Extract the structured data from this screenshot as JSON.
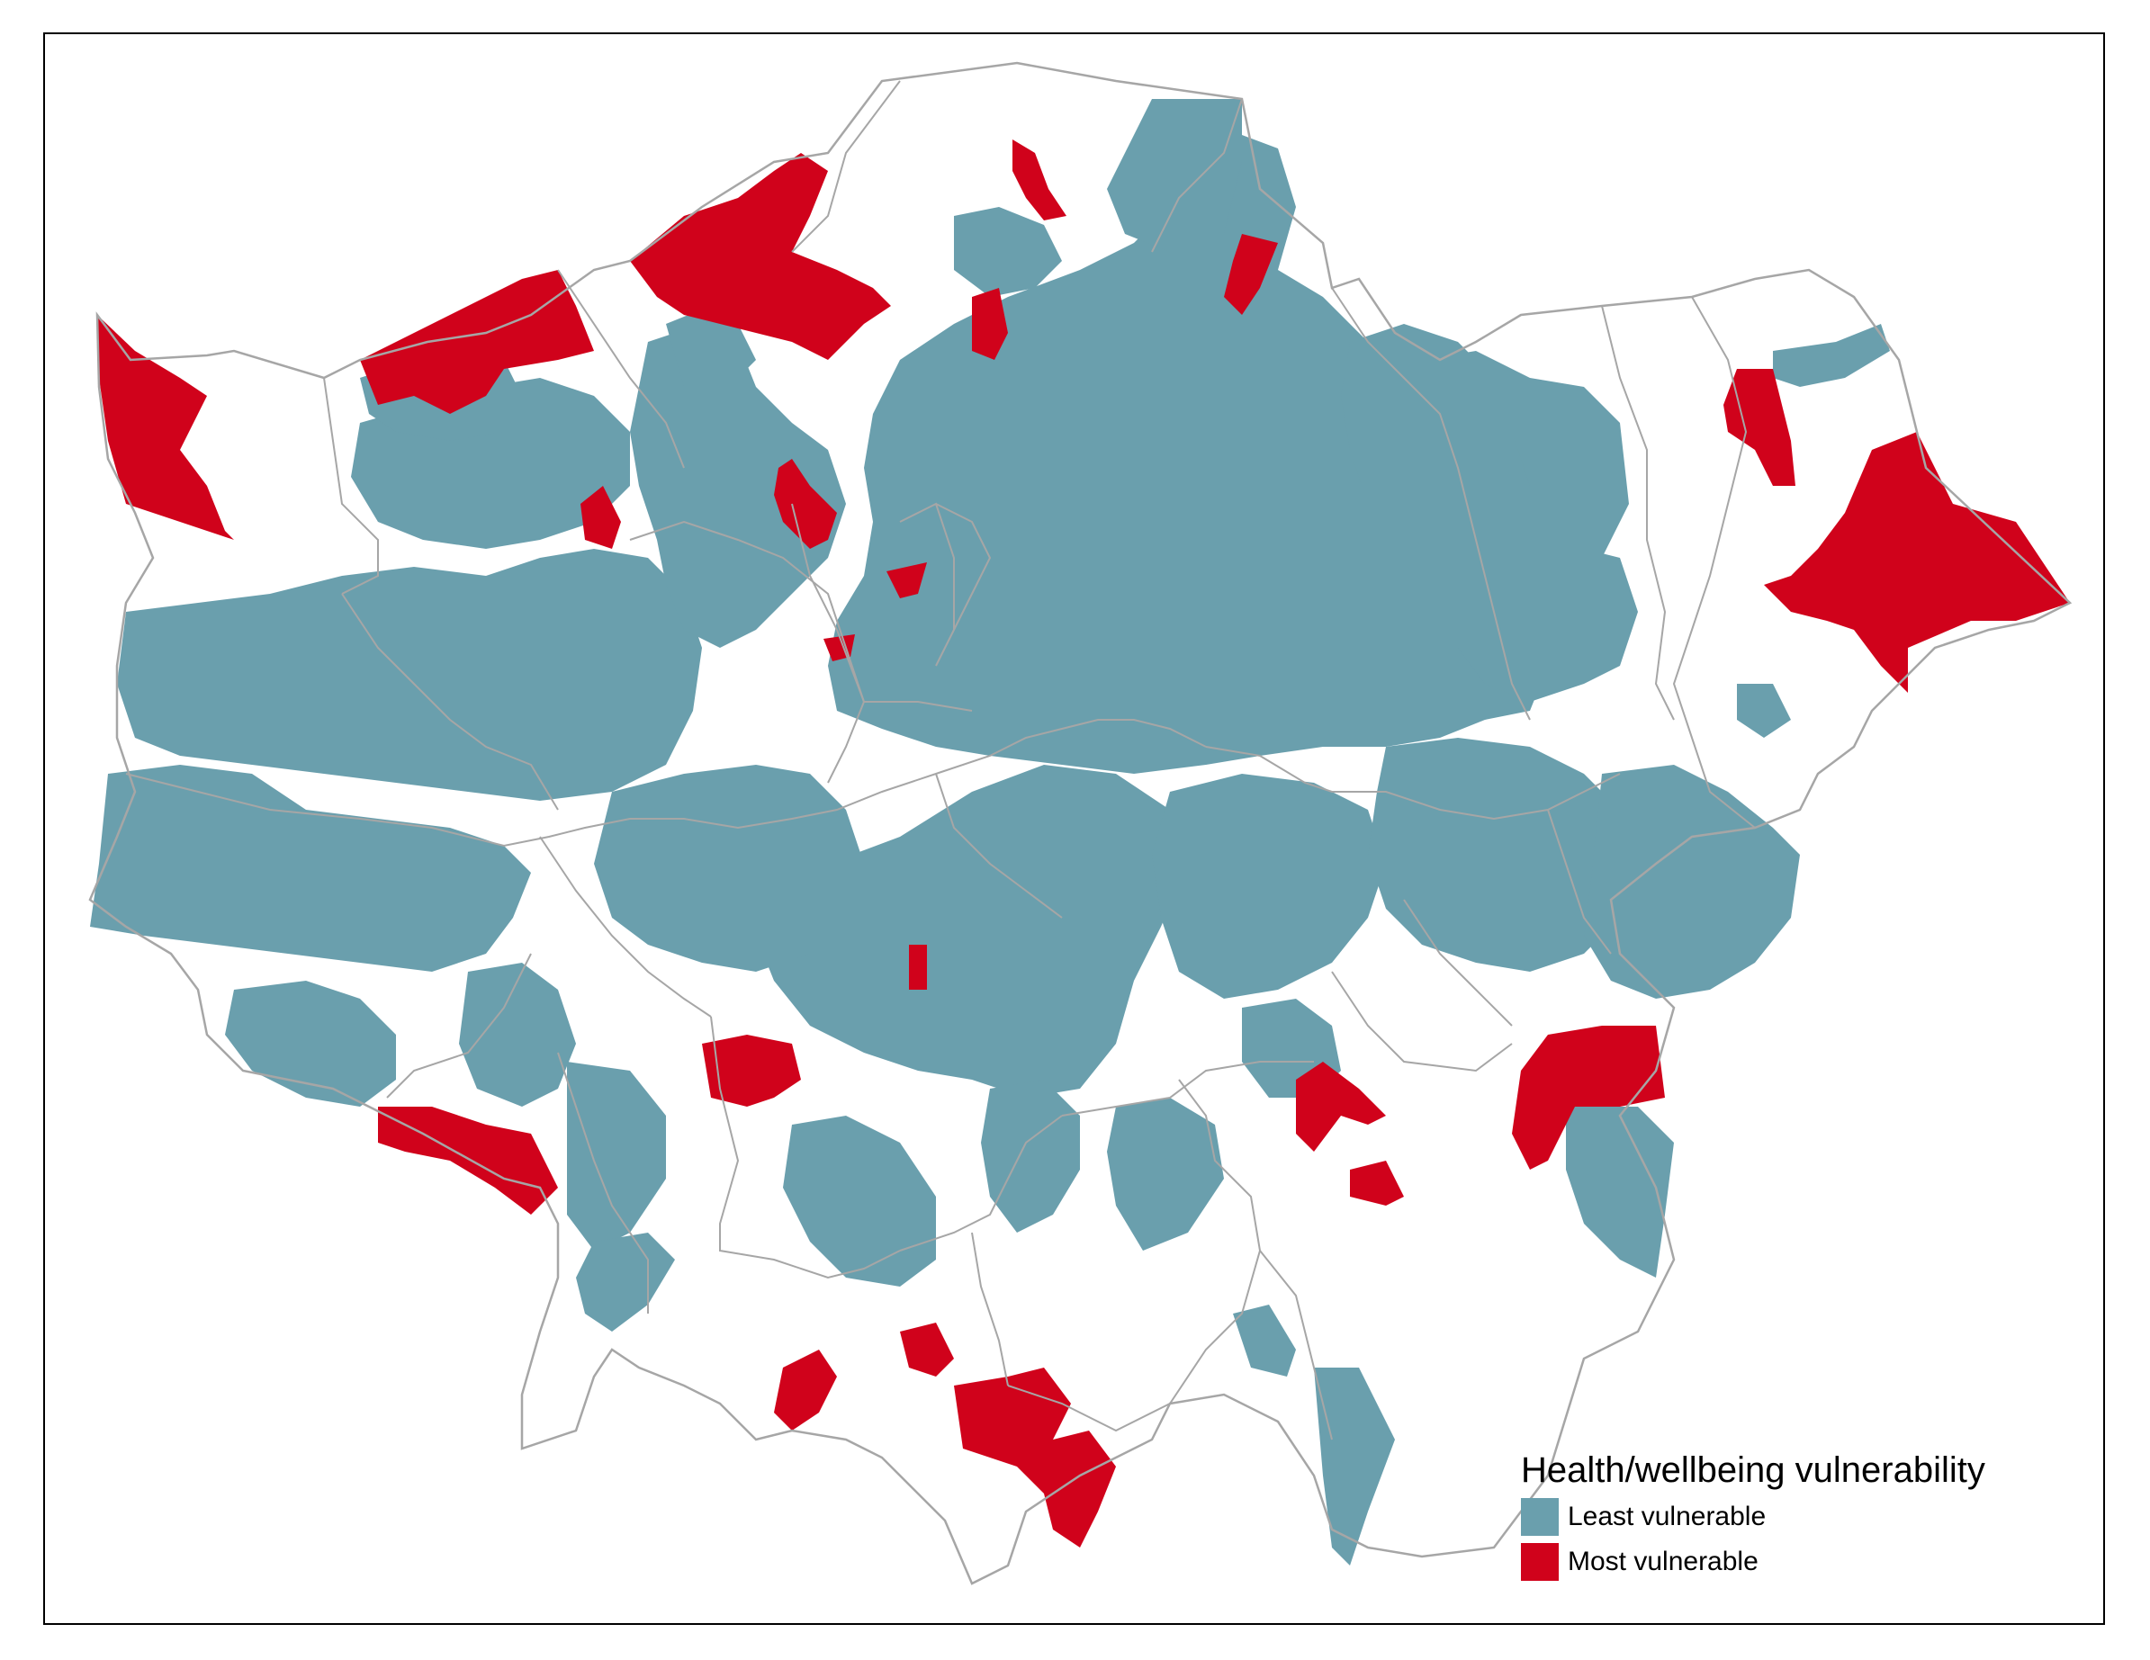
{
  "map": {
    "boundary_color": "#a6a6a6",
    "background_color": "#ffffff"
  },
  "legend": {
    "title": "Health/wellbeing vulnerability",
    "items": [
      {
        "label": "Least vulnerable",
        "color": "#6a9fad"
      },
      {
        "label": "Most vulnerable",
        "color": "#d0021b"
      }
    ]
  }
}
